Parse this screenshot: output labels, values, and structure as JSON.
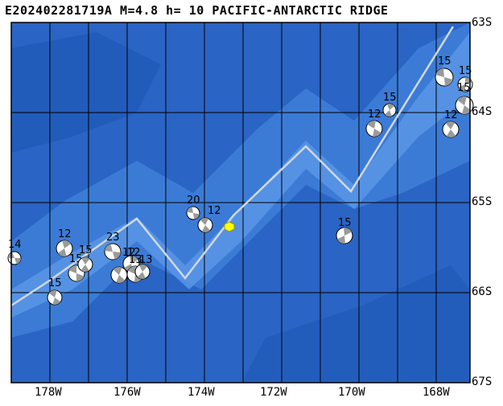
{
  "title": "E202402281719A  M=4.8  h= 10  PACIFIC-ANTARCTIC RIDGE",
  "lat_labels": [
    "63S",
    "64S",
    "65S",
    "66S",
    "67S"
  ],
  "lon_labels": [
    "178W",
    "176W",
    "174W",
    "172W",
    "170W",
    "168W"
  ],
  "colors": {
    "ocean_deep": "#2a64c4",
    "ocean_mid": "#3b7bd6",
    "ocean_shallow": "#5a96e6",
    "ridge": "#d0d8e4",
    "epicenter": "#ffff00"
  },
  "main_event_marker": "yellow-hexagon",
  "focal_mechanisms": [
    {
      "label": "14"
    },
    {
      "label": "15"
    },
    {
      "label": "12"
    },
    {
      "label": "15"
    },
    {
      "label": "15"
    },
    {
      "label": "23"
    },
    {
      "label": "12"
    },
    {
      "label": "12"
    },
    {
      "label": "13"
    },
    {
      "label": "13"
    },
    {
      "label": "20"
    },
    {
      "label": "12"
    },
    {
      "label": "15"
    },
    {
      "label": "12"
    },
    {
      "label": "15"
    },
    {
      "label": "15"
    },
    {
      "label": "12"
    },
    {
      "label": "15"
    },
    {
      "label": "15"
    }
  ]
}
